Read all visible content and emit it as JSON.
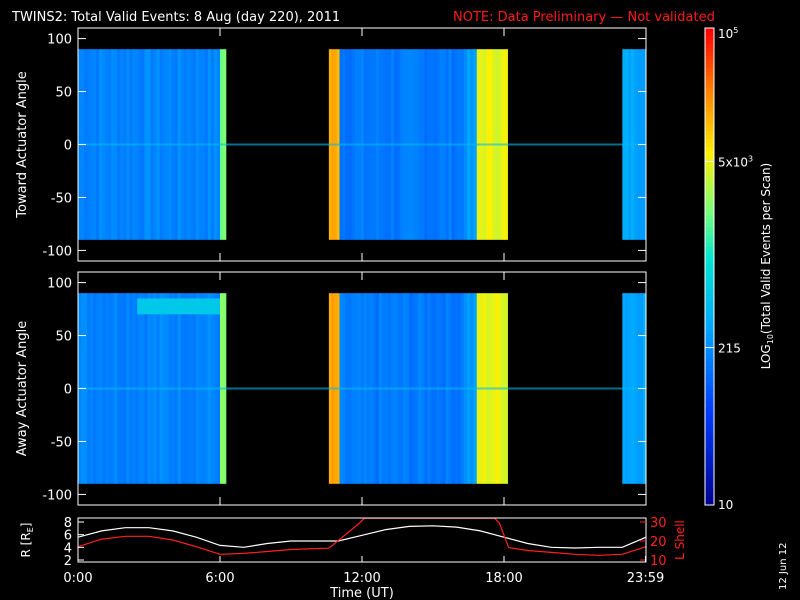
{
  "chart_data": [
    {
      "type": "heatmap",
      "title": "TWINS2: Total Valid Events:  8 Aug (day 220), 2011",
      "note": "NOTE: Data Preliminary — Not validated",
      "ylabel": "Toward Actuator Angle",
      "ylim": [
        -110,
        110
      ],
      "yticks": [
        100,
        50,
        0,
        -50,
        -100
      ],
      "xlim_hours": [
        0,
        24
      ],
      "data_angle_range": [
        -90,
        90
      ],
      "segments": [
        {
          "start_h": 0.0,
          "end_h": 6.0,
          "level": 0.32
        },
        {
          "start_h": 6.0,
          "end_h": 6.25,
          "level": 0.62
        },
        {
          "start_h": 10.6,
          "end_h": 11.05,
          "level": 0.82
        },
        {
          "start_h": 11.05,
          "end_h": 16.3,
          "level": 0.3
        },
        {
          "start_h": 16.3,
          "end_h": 16.85,
          "level": 0.35
        },
        {
          "start_h": 16.85,
          "end_h": 18.15,
          "level": 0.72
        },
        {
          "start_h": 23.0,
          "end_h": 24.0,
          "level": 0.38
        }
      ]
    },
    {
      "type": "heatmap",
      "ylabel": "Away Actuator Angle",
      "ylim": [
        -110,
        110
      ],
      "yticks": [
        100,
        50,
        0,
        -50,
        -100
      ],
      "xlim_hours": [
        0,
        24
      ],
      "data_angle_range": [
        -90,
        90
      ],
      "segments": [
        {
          "start_h": 0.0,
          "end_h": 6.0,
          "level": 0.32
        },
        {
          "start_h": 6.0,
          "end_h": 6.25,
          "level": 0.62
        },
        {
          "start_h": 10.6,
          "end_h": 11.05,
          "level": 0.82
        },
        {
          "start_h": 11.05,
          "end_h": 16.3,
          "level": 0.3
        },
        {
          "start_h": 16.3,
          "end_h": 16.85,
          "level": 0.35
        },
        {
          "start_h": 16.85,
          "end_h": 18.15,
          "level": 0.72
        },
        {
          "start_h": 23.0,
          "end_h": 24.0,
          "level": 0.38
        }
      ],
      "patch": {
        "start_h": 2.5,
        "end_h": 6.0,
        "angle_from": 70,
        "angle_to": 85,
        "level": 0.45
      }
    },
    {
      "type": "line",
      "xlabel": "Time (UT)",
      "xticks": [
        "0:00",
        "6:00",
        "12:00",
        "18:00",
        "23:59"
      ],
      "xtick_hours": [
        0,
        6,
        12,
        18,
        23.98
      ],
      "ylabel_left": "R [R",
      "ylabel_left_sub": "E",
      "ylabel_left_end": "]",
      "ylim_left": [
        2,
        8
      ],
      "yticks_left": [
        8,
        6,
        4,
        2
      ],
      "ylabel_right": "L Shell",
      "ylim_right": [
        10,
        30
      ],
      "yticks_right": [
        30,
        20,
        10
      ],
      "series": [
        {
          "axis": "left",
          "color": "#ffffff",
          "x": [
            0,
            1,
            2,
            3,
            4,
            5,
            6,
            7,
            8,
            9,
            10,
            11,
            12,
            13,
            14,
            15,
            16,
            17,
            18,
            19,
            20,
            21,
            22,
            23,
            24
          ],
          "y": [
            5.6,
            6.6,
            7.1,
            7.1,
            6.6,
            5.6,
            4.3,
            4.0,
            4.6,
            5.0,
            5.0,
            5.0,
            5.9,
            6.8,
            7.3,
            7.4,
            7.2,
            6.6,
            5.6,
            4.6,
            4.0,
            3.9,
            4.0,
            4.0,
            5.6
          ]
        },
        {
          "axis": "right",
          "color": "#ff2020",
          "x": [
            0,
            1,
            2,
            3,
            4,
            5,
            6,
            7,
            8,
            9,
            10,
            10.6,
            11.9,
            12.1,
            17.6,
            17.8,
            18.2,
            19,
            20,
            21,
            22,
            23,
            24
          ],
          "y": [
            17,
            21,
            22.5,
            22.5,
            20.5,
            17,
            13,
            13.5,
            14.5,
            15.5,
            16,
            16.2,
            29.5,
            32,
            32,
            29.5,
            16.5,
            15,
            14,
            13,
            12.5,
            13,
            17
          ]
        }
      ]
    },
    {
      "type": "heatmap",
      "colorbar_label": "LOG",
      "colorbar_label_sub": "10",
      "colorbar_label_end": "(Total Valid Events per Scan)",
      "colorbar_ticks": [
        {
          "label": "10",
          "frac": 0.0
        },
        {
          "label": "215",
          "frac": 0.33
        },
        {
          "label": "5x10",
          "exp": "3",
          "frac": 0.72
        },
        {
          "label": "10",
          "exp": "5",
          "frac": 1.0
        }
      ]
    }
  ],
  "footer": {
    "date_stamp": "12 Jun 12"
  }
}
